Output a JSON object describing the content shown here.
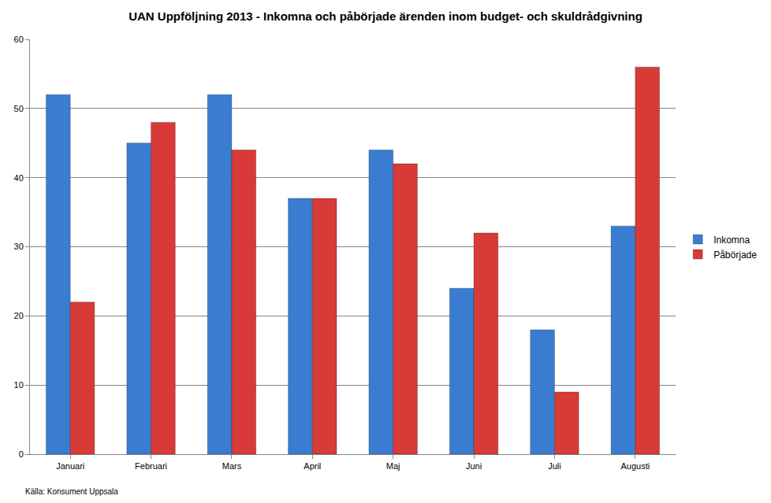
{
  "chart_data": {
    "type": "bar",
    "title": "UAN Uppföljning 2013 - Inkomna och påbörjade ärenden inom budget- och skuldrådgivning",
    "categories": [
      "Januari",
      "Februari",
      "Mars",
      "April",
      "Maj",
      "Juni",
      "Juli",
      "Augusti"
    ],
    "series": [
      {
        "name": "Inkomna",
        "color": "#3a7dd0",
        "values": [
          52,
          45,
          52,
          37,
          44,
          24,
          18,
          33
        ]
      },
      {
        "name": "Påbörjade",
        "color": "#d83a38",
        "values": [
          22,
          48,
          44,
          37,
          42,
          32,
          9,
          56
        ]
      }
    ],
    "ylim": [
      0,
      60
    ],
    "yticks": [
      0,
      10,
      20,
      30,
      40,
      50,
      60
    ],
    "grid": true,
    "legend": "right",
    "annotations": [
      "Källa: Konsument Uppsala"
    ]
  }
}
